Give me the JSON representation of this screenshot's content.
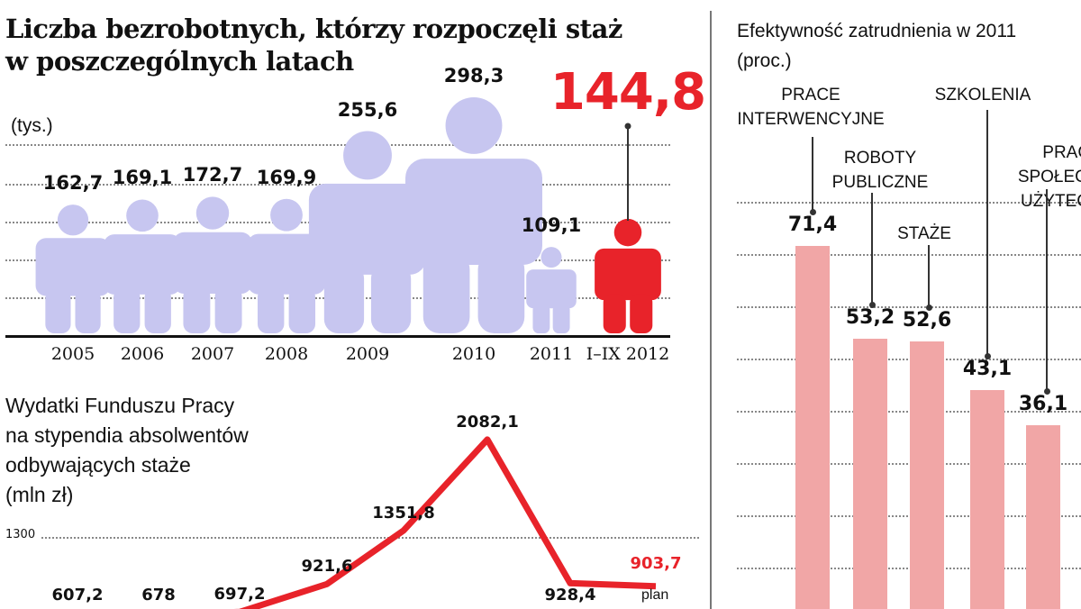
{
  "chart_data": [
    {
      "type": "bar",
      "title": "Liczba bezrobotnych, którzy rozpoczęli staż w poszczególnych latach",
      "unit": "(tys.)",
      "categories": [
        "2005",
        "2006",
        "2007",
        "2008",
        "2009",
        "2010",
        "2011",
        "I–IX 2012"
      ],
      "values": [
        162.7,
        169.1,
        172.7,
        169.9,
        255.6,
        298.3,
        109.1,
        144.8
      ],
      "value_labels": [
        "162,7",
        "169,1",
        "172,7",
        "169,9",
        "255,6",
        "298,3",
        "109,1",
        "144,8"
      ],
      "marker": "person-figure",
      "colors": {
        "default": "#c7c6f0",
        "highlight": "#e8232a"
      },
      "highlight_index": 7
    },
    {
      "type": "line",
      "title_lines": [
        "Wydatki Funduszu Pracy",
        "na stypendia absolwentów",
        "odbywających staże",
        "(mln zł)"
      ],
      "y_tick": "1300",
      "values": [
        607.2,
        678,
        697.2,
        921.6,
        1351.8,
        2082.1,
        928.4,
        903.7
      ],
      "value_labels": [
        "607,2",
        "678",
        "697,2",
        "921,6",
        "1351,8",
        "2082,1",
        "928,4",
        "903,7"
      ],
      "plan_label": "plan",
      "colors": {
        "line": "#e8232a",
        "plan_value": "#e8232a"
      }
    },
    {
      "type": "bar",
      "title_lines": [
        "Efektywność zatrudnienia w 2011",
        "(proc.)"
      ],
      "categories": [
        [
          "PRACE",
          "INTERWENCYJNE"
        ],
        [
          "ROBOTY",
          "PUBLICZNE"
        ],
        [
          "STAŻE"
        ],
        [
          "SZKOLENIA"
        ],
        [
          "PRACE",
          "SPOŁECZNIE",
          "UŻYTECZNE"
        ]
      ],
      "values": [
        71.4,
        53.2,
        52.6,
        43.1,
        36.1
      ],
      "value_labels": [
        "71,4",
        "53,2",
        "52,6",
        "43,1",
        "36,1"
      ],
      "colors": {
        "bar": "#f1a6a6"
      }
    }
  ]
}
